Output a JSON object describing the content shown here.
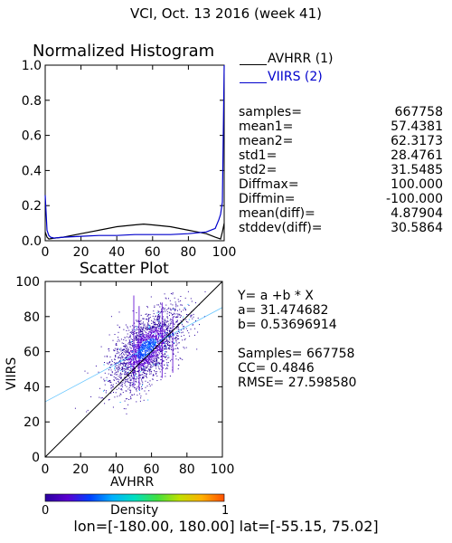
{
  "title": "VCI,  Oct. 13 2016 (week 41)",
  "footer": "lon=[-180.00, 180.00] lat=[-55.15, 75.02]",
  "histogram": {
    "title": "Normalized Histogram",
    "legend": [
      {
        "name": "AVHRR (1)",
        "color": "#000000"
      },
      {
        "name": "VIIRS (2)",
        "color": "#0000cc"
      }
    ]
  },
  "stats": [
    {
      "label": "samples=",
      "value": "667758"
    },
    {
      "label": "mean1=",
      "value": "57.4381"
    },
    {
      "label": "mean2=",
      "value": "62.3173"
    },
    {
      "label": "std1=",
      "value": "28.4761"
    },
    {
      "label": "std2=",
      "value": "31.5485"
    },
    {
      "label": "Diffmax=",
      "value": "100.000"
    },
    {
      "label": "Diffmin=",
      "value": "-100.000"
    },
    {
      "label": "mean(diff)=",
      "value": "4.87904"
    },
    {
      "label": "stddev(diff)=",
      "value": "30.5864"
    }
  ],
  "scatter": {
    "title": "Scatter Plot",
    "xlabel": "AVHRR",
    "ylabel": "VIIRS",
    "regression": {
      "equation": "Y= a +b * X",
      "a": "a= 31.474682",
      "b": "b= 0.53696914"
    },
    "summary": {
      "samples": "Samples= 667758",
      "cc": "CC=  0.4846",
      "rmse": "RMSE= 27.598580"
    }
  },
  "colorbar": {
    "label": "Density",
    "min_label": "0",
    "max_label": "1"
  },
  "chart_data": [
    {
      "type": "line",
      "title": "Normalized Histogram",
      "xlim": [
        0,
        100
      ],
      "ylim": [
        0,
        1.0
      ],
      "x_ticks": [
        "0",
        "20",
        "40",
        "60",
        "80",
        "100"
      ],
      "y_ticks": [
        "0.0",
        "0.2",
        "0.4",
        "0.6",
        "0.8",
        "1.0"
      ],
      "series": [
        {
          "name": "AVHRR (1)",
          "color": "#000000",
          "x": [
            0,
            1,
            2,
            5,
            10,
            20,
            30,
            40,
            50,
            55,
            60,
            70,
            80,
            90,
            95,
            98,
            99,
            100
          ],
          "y": [
            0.05,
            0.02,
            0.01,
            0.015,
            0.02,
            0.04,
            0.06,
            0.08,
            0.09,
            0.095,
            0.09,
            0.08,
            0.06,
            0.04,
            0.02,
            0.01,
            0.05,
            0.1
          ]
        },
        {
          "name": "VIIRS (2)",
          "color": "#0000cc",
          "x": [
            0,
            1,
            2,
            3,
            5,
            10,
            20,
            30,
            40,
            50,
            60,
            70,
            80,
            90,
            95,
            97,
            98,
            99,
            100
          ],
          "y": [
            0.26,
            0.06,
            0.03,
            0.02,
            0.015,
            0.02,
            0.025,
            0.03,
            0.03,
            0.035,
            0.035,
            0.035,
            0.04,
            0.05,
            0.07,
            0.12,
            0.15,
            0.22,
            1.0
          ]
        }
      ]
    },
    {
      "type": "scatter",
      "title": "Scatter Plot",
      "xlabel": "AVHRR",
      "ylabel": "VIIRS",
      "xlim": [
        0,
        100
      ],
      "ylim": [
        0,
        100
      ],
      "x_ticks": [
        "0",
        "20",
        "40",
        "60",
        "80",
        "100"
      ],
      "y_ticks": [
        "0",
        "20",
        "40",
        "60",
        "80",
        "100"
      ],
      "cloud": {
        "center_x": 57,
        "center_y": 62,
        "sd_x": 10,
        "sd_y": 11,
        "corr": 0.6
      },
      "regression_line": {
        "intercept": 31.474682,
        "slope": 0.53696914
      },
      "one_to_one_line": true,
      "colormap": [
        "#2a00a0",
        "#5a00d0",
        "#0040ff",
        "#00b0ff",
        "#00e0c0",
        "#40e040",
        "#c0e000",
        "#ffb000",
        "#ff5000"
      ]
    }
  ]
}
